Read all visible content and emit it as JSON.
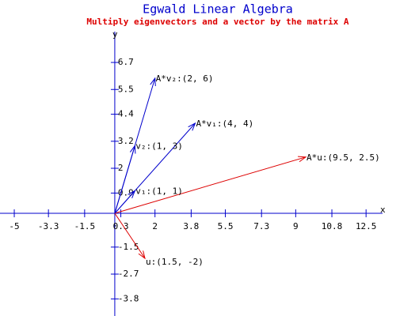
{
  "chart_data": {
    "type": "vector",
    "title": "Egwald Linear Algebra",
    "subtitle": "Multiply eigenvectors and a vector by the matrix A",
    "x_label": "x",
    "y_label": "y",
    "xlim": [
      -5.71,
      13.32
    ],
    "ylim": [
      -4.56,
      8.07
    ],
    "xticks": [
      -5,
      -3.3,
      -1.5,
      0.3,
      2,
      3.8,
      5.5,
      7.3,
      9,
      10.8,
      12.5
    ],
    "yticks": [
      6.7,
      5.5,
      4.4,
      3.2,
      2,
      0.9,
      -1.5,
      -2.7,
      -3.8
    ],
    "vectors": [
      {
        "label": "u:(1.5, -2)",
        "x": 1.5,
        "y": -2,
        "color": "#dd0000"
      },
      {
        "label": "A*u:(9.5, 2.5)",
        "x": 9.5,
        "y": 2.5,
        "color": "#dd0000"
      },
      {
        "label": "v₁:(1, 1)",
        "x": 1,
        "y": 1,
        "color": "#0000cc"
      },
      {
        "label": "A*v₁:(4, 4)",
        "x": 4,
        "y": 4,
        "color": "#0000cc"
      },
      {
        "label": "v₂:(1, 3)",
        "x": 1,
        "y": 3,
        "color": "#0000cc"
      },
      {
        "label": "A*v₂:(2, 6)",
        "x": 2,
        "y": 6,
        "color": "#0000cc"
      }
    ]
  }
}
